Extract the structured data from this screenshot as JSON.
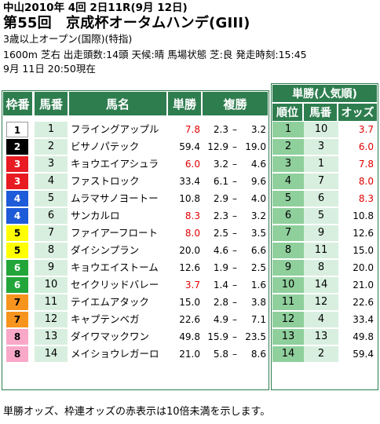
{
  "race": {
    "venue_line": "中山2010年 4回 2日11R(9月 12日)",
    "title": "第55回　京成杯オータムハンデ(GIII)",
    "conditions": "3歳以上オープン(国際)(特指)",
    "info": "1600m 芝右 出走頭数:14頭 天候:晴 馬場状態 芝:良 発走時刻:15:45",
    "as_of": "9月 11日 20:50現在"
  },
  "headers": {
    "waku": "枠番",
    "umaban": "馬番",
    "name": "馬名",
    "win": "単勝",
    "place": "複勝",
    "ranking_title": "単勝(人気順)",
    "rank": "順位",
    "rank_umaban": "馬番",
    "odds": "オッズ"
  },
  "colors": {
    "header_bg": "#2e7d4f",
    "umaban_bg": "#d8efdf",
    "rank_bg": "#8fcf9c",
    "red_text": "#e00000"
  },
  "horses": [
    {
      "waku": "1",
      "umaban": "1",
      "name": "フライングアップル",
      "win": "7.8",
      "win_red": true,
      "place_lo": "2.3",
      "place_hi": "3.2",
      "waku_bg": "#ffffff",
      "waku_fg": "#000000"
    },
    {
      "waku": "2",
      "umaban": "2",
      "name": "ビサノパテック",
      "win": "59.4",
      "win_red": false,
      "place_lo": "12.9",
      "place_hi": "19.0",
      "waku_bg": "#000000",
      "waku_fg": "#ffffff"
    },
    {
      "waku": "3",
      "umaban": "3",
      "name": "キョウエイアシュラ",
      "win": "6.0",
      "win_red": true,
      "place_lo": "3.2",
      "place_hi": "4.6",
      "waku_bg": "#e81b23",
      "waku_fg": "#ffffff"
    },
    {
      "waku": "3",
      "umaban": "4",
      "name": "ファストロック",
      "win": "33.4",
      "win_red": false,
      "place_lo": "6.1",
      "place_hi": "9.6",
      "waku_bg": "#e81b23",
      "waku_fg": "#ffffff"
    },
    {
      "waku": "4",
      "umaban": "5",
      "name": "ムラマサノヨートー",
      "win": "10.8",
      "win_red": false,
      "place_lo": "2.9",
      "place_hi": "4.0",
      "waku_bg": "#1e5bd8",
      "waku_fg": "#ffffff"
    },
    {
      "waku": "4",
      "umaban": "6",
      "name": "サンカルロ",
      "win": "8.3",
      "win_red": true,
      "place_lo": "2.3",
      "place_hi": "3.2",
      "waku_bg": "#1e5bd8",
      "waku_fg": "#ffffff"
    },
    {
      "waku": "5",
      "umaban": "7",
      "name": "ファイアーフロート",
      "win": "8.0",
      "win_red": true,
      "place_lo": "2.5",
      "place_hi": "3.5",
      "waku_bg": "#ffff00",
      "waku_fg": "#000000"
    },
    {
      "waku": "5",
      "umaban": "8",
      "name": "ダイシンプラン",
      "win": "20.0",
      "win_red": false,
      "place_lo": "4.6",
      "place_hi": "6.6",
      "waku_bg": "#ffff00",
      "waku_fg": "#000000"
    },
    {
      "waku": "6",
      "umaban": "9",
      "name": "キョウエイストーム",
      "win": "12.6",
      "win_red": false,
      "place_lo": "1.9",
      "place_hi": "2.5",
      "waku_bg": "#22a63a",
      "waku_fg": "#ffffff"
    },
    {
      "waku": "6",
      "umaban": "10",
      "name": "セイクリッドバレー",
      "win": "3.7",
      "win_red": true,
      "place_lo": "1.4",
      "place_hi": "1.6",
      "waku_bg": "#22a63a",
      "waku_fg": "#ffffff"
    },
    {
      "waku": "7",
      "umaban": "11",
      "name": "テイエムアタック",
      "win": "15.0",
      "win_red": false,
      "place_lo": "2.8",
      "place_hi": "3.8",
      "waku_bg": "#f7941d",
      "waku_fg": "#000000"
    },
    {
      "waku": "7",
      "umaban": "12",
      "name": "キャプテンベガ",
      "win": "22.6",
      "win_red": false,
      "place_lo": "4.9",
      "place_hi": "7.1",
      "waku_bg": "#f7941d",
      "waku_fg": "#000000"
    },
    {
      "waku": "8",
      "umaban": "13",
      "name": "ダイワマックワン",
      "win": "49.8",
      "win_red": false,
      "place_lo": "15.9",
      "place_hi": "23.5",
      "waku_bg": "#f9a8c8",
      "waku_fg": "#000000"
    },
    {
      "waku": "8",
      "umaban": "14",
      "name": "メイショウレガーロ",
      "win": "21.0",
      "win_red": false,
      "place_lo": "5.8",
      "place_hi": "8.6",
      "waku_bg": "#f9a8c8",
      "waku_fg": "#000000"
    }
  ],
  "ranking": [
    {
      "rank": "1",
      "umaban": "10",
      "odds": "3.7",
      "red": true
    },
    {
      "rank": "2",
      "umaban": "3",
      "odds": "6.0",
      "red": true
    },
    {
      "rank": "3",
      "umaban": "1",
      "odds": "7.8",
      "red": true
    },
    {
      "rank": "4",
      "umaban": "7",
      "odds": "8.0",
      "red": true
    },
    {
      "rank": "5",
      "umaban": "6",
      "odds": "8.3",
      "red": true
    },
    {
      "rank": "6",
      "umaban": "5",
      "odds": "10.8",
      "red": false
    },
    {
      "rank": "7",
      "umaban": "9",
      "odds": "12.6",
      "red": false
    },
    {
      "rank": "8",
      "umaban": "11",
      "odds": "15.0",
      "red": false
    },
    {
      "rank": "9",
      "umaban": "8",
      "odds": "20.0",
      "red": false
    },
    {
      "rank": "10",
      "umaban": "14",
      "odds": "21.0",
      "red": false
    },
    {
      "rank": "11",
      "umaban": "12",
      "odds": "22.6",
      "red": false
    },
    {
      "rank": "12",
      "umaban": "4",
      "odds": "33.4",
      "red": false
    },
    {
      "rank": "13",
      "umaban": "13",
      "odds": "49.8",
      "red": false
    },
    {
      "rank": "14",
      "umaban": "2",
      "odds": "59.4",
      "red": false
    }
  ],
  "footer": "単勝オッズ、枠連オッズの赤表示は10倍未満を示します。"
}
